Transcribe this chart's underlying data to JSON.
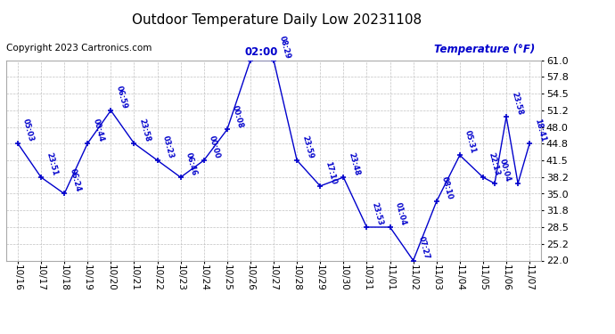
{
  "title": "Outdoor Temperature Daily Low 20231108",
  "copyright": "Copyright 2023 Cartronics.com",
  "ylabel_right": "Temperature (°F)",
  "time_label_peak": "02:00",
  "background_color": "#ffffff",
  "line_color": "#0000cc",
  "text_color": "#0000cc",
  "grid_color": "#bbbbbb",
  "ylim": [
    22.0,
    61.0
  ],
  "yticks": [
    22.0,
    25.2,
    28.5,
    31.8,
    35.0,
    38.2,
    41.5,
    44.8,
    48.0,
    51.2,
    54.5,
    57.8,
    61.0
  ],
  "x_labels": [
    "10/16",
    "10/17",
    "10/18",
    "10/19",
    "10/20",
    "10/21",
    "10/22",
    "10/23",
    "10/24",
    "10/25",
    "10/26",
    "10/27",
    "10/28",
    "10/29",
    "10/30",
    "10/31",
    "11/01",
    "11/02",
    "11/03",
    "11/04",
    "11/05",
    "11/06",
    "11/07"
  ],
  "all_x": [
    0,
    1,
    2,
    3,
    4,
    5,
    6,
    7,
    8,
    9,
    10,
    11,
    12,
    13,
    14,
    15,
    16,
    17,
    18,
    19,
    20,
    20.5,
    21,
    21.5,
    22
  ],
  "all_y": [
    44.8,
    38.2,
    35.0,
    44.8,
    51.2,
    44.8,
    41.5,
    38.2,
    41.5,
    47.5,
    61.0,
    61.0,
    41.5,
    36.5,
    38.2,
    28.5,
    28.5,
    22.0,
    33.5,
    42.5,
    38.2,
    37.0,
    50.0,
    37.0,
    44.8
  ],
  "all_times": [
    "05:03",
    "23:51",
    "06:24",
    "00:44",
    "06:59",
    "23:58",
    "03:23",
    "06:46",
    "00:00",
    "00:08",
    "",
    "08:29",
    "23:59",
    "17:10",
    "23:48",
    "23:53",
    "01:04",
    "07:27",
    "08:10",
    "05:31",
    "22:13",
    "00:04",
    "23:58",
    "",
    "18:41"
  ]
}
